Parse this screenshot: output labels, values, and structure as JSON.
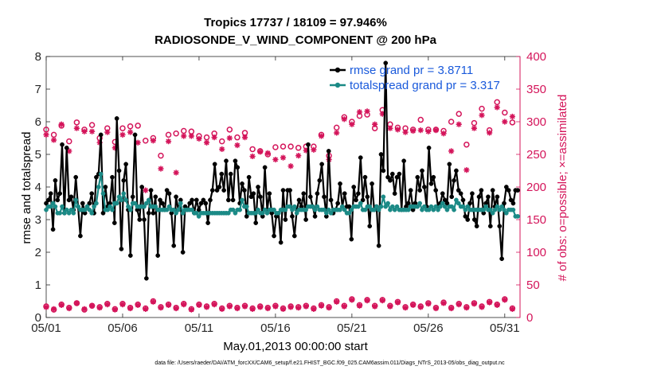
{
  "chart_data": {
    "type": "line",
    "title": "Tropics 17737 / 18109 = 97.946%",
    "subtitle": "RADIOSONDE_V_WIND_COMPONENT @ 200 hPa",
    "xlabel": "May.01,2013 00:00:00 start",
    "ylabel_left": "rmse and totalspread",
    "ylabel_right": "# of obs: o=possible; ×=assimilated",
    "footnote": "data file: /Users/raeder/DAI/ATM_forcXX/CAM6_setup/f.e21.FHIST_BGC.f09_025.CAM6assim.011/Diags_NTrS_2013-05/obs_diag_output.nc",
    "x_tick_labels": [
      "05/01",
      "05/06",
      "05/11",
      "05/16",
      "05/21",
      "05/26",
      "05/31"
    ],
    "x_tick_days": [
      1,
      6,
      11,
      16,
      21,
      26,
      31
    ],
    "xlim_days": [
      1,
      32
    ],
    "ylim_left": [
      0,
      8
    ],
    "y_ticks_left": [
      "0",
      "1",
      "2",
      "3",
      "4",
      "5",
      "6",
      "7",
      "8"
    ],
    "ylim_right": [
      0,
      400
    ],
    "y_ticks_right": [
      "0",
      "50",
      "100",
      "150",
      "200",
      "250",
      "300",
      "350",
      "400"
    ],
    "colors": {
      "rmse": "#000000",
      "spread": "#1b8a86",
      "obs": "#d4145a",
      "legend_text": "#1a5adb"
    },
    "series": [
      {
        "name": "rmse grand pr = 3.8711",
        "axis": "left",
        "values": [
          3.5,
          3.6,
          3.8,
          2.7,
          4.2,
          3.6,
          3.8,
          5.3,
          3.2,
          5.2,
          3.6,
          3.7,
          3.3,
          4.3,
          3.4,
          2.5,
          3.5,
          3.2,
          3.4,
          3.5,
          3.8,
          3.2,
          4.3,
          4.4,
          5.6,
          3.2,
          4.0,
          3.4,
          3.5,
          4.3,
          2.9,
          6.1,
          4.5,
          2.1,
          4.2,
          4.7,
          3.3,
          1.9,
          3.7,
          5.6,
          3.3,
          3.0,
          4.0,
          3.0,
          1.2,
          3.2,
          3.9,
          3.2,
          3.7,
          1.9,
          3.6,
          3.5,
          3.3,
          3.9,
          3.8,
          3.2,
          2.2,
          3.7,
          3.3,
          3.6,
          2.0,
          3.4,
          3.3,
          3.5,
          3.6,
          3.2,
          3.6,
          3.3,
          3.5,
          3.6,
          3.5,
          2.9,
          3.6,
          3.9,
          4.7,
          3.9,
          4.0,
          4.4,
          3.9,
          4.8,
          3.6,
          4.4,
          3.6,
          4.8,
          4.6,
          3.5,
          4.1,
          3.9,
          3.1,
          4.3,
          3.7,
          3.8,
          2.9,
          4.0,
          3.7,
          3.1,
          4.6,
          3.3,
          3.8,
          3.2,
          2.5,
          3.1,
          3.2,
          2.3,
          3.9,
          3.0,
          3.9,
          3.9,
          3.1,
          2.5,
          3.3,
          3.6,
          3.4,
          3.8,
          3.0,
          5.3,
          3.7,
          3.4,
          3.1,
          3.8,
          4.2,
          4.7,
          3.7,
          3.1,
          5.1,
          3.6,
          3.2,
          3.3,
          3.5,
          4.1,
          3.4,
          3.8,
          3.4,
          3.4,
          2.4,
          4.0,
          3.6,
          3.8,
          4.9,
          3.6,
          4.3,
          3.7,
          2.8,
          4.1,
          3.3,
          3.4,
          2.2,
          5.0,
          4.5,
          7.8,
          4.3,
          4.2,
          4.4,
          3.8,
          4.3,
          4.4,
          3.3,
          4.8,
          3.4,
          3.5,
          3.9,
          3.3,
          3.5,
          4.3,
          3.9,
          4.5,
          4.0,
          3.4,
          5.2,
          4.1,
          4.3,
          3.9,
          3.4,
          3.5,
          3.8,
          3.6,
          3.5,
          4.7,
          3.7,
          4.2,
          4.5,
          3.9,
          3.8,
          3.6,
          3.1,
          3.0,
          3.5,
          3.8,
          3.0,
          2.8,
          3.7,
          3.9,
          3.2,
          3.5,
          3.7,
          2.8,
          3.9,
          3.4,
          3.7,
          2.8,
          1.8,
          3.5,
          4.0,
          3.9,
          3.6,
          3.5,
          3.9,
          3.9
        ]
      },
      {
        "name": "totalspread grand pr = 3.317",
        "axis": "left",
        "values": [
          3.3,
          3.4,
          3.4,
          3.5,
          3.4,
          3.2,
          3.2,
          3.4,
          3.2,
          3.3,
          3.2,
          3.3,
          3.2,
          3.6,
          3.4,
          3.3,
          3.3,
          3.3,
          3.4,
          3.3,
          3.2,
          3.4,
          3.5,
          4.0,
          4.4,
          3.8,
          3.3,
          3.3,
          3.4,
          3.3,
          3.5,
          3.5,
          3.7,
          3.6,
          3.8,
          3.6,
          3.4,
          3.3,
          3.5,
          3.5,
          3.4,
          3.4,
          3.4,
          3.4,
          3.5,
          3.6,
          3.4,
          3.4,
          3.4,
          3.3,
          3.3,
          3.3,
          3.3,
          3.3,
          3.4,
          3.3,
          3.3,
          3.2,
          3.3,
          3.5,
          3.2,
          3.3,
          3.3,
          3.3,
          3.3,
          3.2,
          3.2,
          3.1,
          3.2,
          3.2,
          3.2,
          3.2,
          3.2,
          3.2,
          3.2,
          3.2,
          3.2,
          3.2,
          3.2,
          3.2,
          3.2,
          3.3,
          3.3,
          3.2,
          3.3,
          3.3,
          3.6,
          3.4,
          3.4,
          3.2,
          3.2,
          3.2,
          3.2,
          3.3,
          3.2,
          3.2,
          3.3,
          3.2,
          3.3,
          3.3,
          3.3,
          3.2,
          3.2,
          3.3,
          3.3,
          3.3,
          3.4,
          3.4,
          3.3,
          3.4,
          3.2,
          3.3,
          3.3,
          3.3,
          3.3,
          3.4,
          3.4,
          3.4,
          3.3,
          3.4,
          3.3,
          3.3,
          3.3,
          3.2,
          3.3,
          3.2,
          3.3,
          3.3,
          3.3,
          3.3,
          3.4,
          3.3,
          3.2,
          3.2,
          3.3,
          3.4,
          3.4,
          3.4,
          3.5,
          3.3,
          3.3,
          3.4,
          3.4,
          3.3,
          3.3,
          3.4,
          3.3,
          3.4,
          3.7,
          3.4,
          3.5,
          3.3,
          3.4,
          3.3,
          3.4,
          3.3,
          3.3,
          3.3,
          3.3,
          3.3,
          3.4,
          3.4,
          3.4,
          3.4,
          3.5,
          3.3,
          3.4,
          3.3,
          3.3,
          3.4,
          3.3,
          3.4,
          3.3,
          3.4,
          3.5,
          3.4,
          3.3,
          3.4,
          3.4,
          3.3,
          3.6,
          3.5,
          3.4,
          3.4,
          3.3,
          3.4,
          3.3,
          3.3,
          3.3,
          3.3,
          3.3,
          3.3,
          3.3,
          3.4,
          3.3,
          3.3,
          3.2,
          3.3,
          3.4,
          3.3,
          3.4,
          3.3,
          3.2,
          3.3,
          3.3,
          3.3,
          3.1,
          3.1
        ]
      }
    ],
    "obs_possible": {
      "name": "possible",
      "axis": "right",
      "days": [
        1.0,
        1.5,
        2.0,
        2.5,
        3.0,
        3.5,
        4.0,
        4.5,
        5.0,
        5.5,
        6.0,
        6.5,
        7.0,
        7.5,
        8.0,
        8.5,
        9.0,
        9.5,
        10.0,
        10.5,
        11.0,
        11.5,
        12.0,
        12.5,
        13.0,
        13.5,
        14.0,
        14.5,
        15.0,
        15.5,
        16.0,
        16.5,
        17.0,
        17.5,
        18.0,
        18.5,
        19.0,
        19.5,
        20.0,
        20.5,
        21.0,
        21.5,
        22.0,
        22.5,
        23.0,
        23.5,
        24.0,
        24.5,
        25.0,
        25.5,
        26.0,
        26.5,
        27.0,
        27.5,
        28.0,
        28.5,
        29.0,
        29.5,
        30.0,
        30.5,
        31.0,
        31.5
      ],
      "high": [
        288,
        280,
        294,
        270,
        299,
        288,
        295,
        275,
        290,
        269,
        290,
        293,
        294,
        271,
        275,
        248,
        280,
        282,
        286,
        285,
        278,
        276,
        282,
        270,
        288,
        276,
        283,
        258,
        255,
        250,
        261,
        262,
        262,
        260,
        262,
        262,
        280,
        248,
        291,
        307,
        300,
        309,
        311,
        290,
        318,
        296,
        291,
        290,
        288,
        303,
        288,
        288,
        286,
        300,
        312,
        265,
        298,
        320,
        287,
        330,
        314,
        299
      ],
      "low": [
        17,
        12,
        20,
        15,
        22,
        12,
        18,
        16,
        21,
        13,
        21,
        15,
        20,
        14,
        25,
        16,
        20,
        15,
        21,
        13,
        20,
        17,
        21,
        14,
        18,
        15,
        18,
        14,
        17,
        15,
        18,
        14,
        17,
        16,
        18,
        14,
        19,
        16,
        25,
        18,
        28,
        19,
        27,
        18,
        27,
        18,
        24,
        16,
        20,
        17,
        22,
        15,
        23,
        15,
        21,
        16,
        22,
        17,
        24,
        20,
        28,
        14
      ]
    },
    "obs_assimilated": {
      "name": "assimilated",
      "axis": "right",
      "days": [
        1.0,
        1.5,
        2.0,
        2.5,
        3.0,
        3.5,
        4.0,
        4.5,
        5.0,
        5.5,
        6.0,
        6.5,
        7.0,
        7.5,
        8.0,
        8.5,
        9.0,
        9.5,
        10.0,
        10.5,
        11.0,
        11.5,
        12.0,
        12.5,
        13.0,
        13.5,
        14.0,
        14.5,
        15.0,
        15.5,
        16.0,
        16.5,
        17.0,
        17.5,
        18.0,
        18.5,
        19.0,
        19.5,
        20.0,
        20.5,
        21.0,
        21.5,
        22.0,
        22.5,
        23.0,
        23.5,
        24.0,
        24.5,
        25.0,
        25.5,
        26.0,
        26.5,
        27.0,
        27.5,
        28.0,
        28.5,
        29.0,
        29.5,
        30.0,
        30.5,
        31.0,
        31.5
      ],
      "high": [
        280,
        272,
        296,
        255,
        290,
        285,
        285,
        268,
        284,
        260,
        280,
        284,
        268,
        195,
        271,
        228,
        270,
        222,
        278,
        278,
        274,
        268,
        276,
        258,
        275,
        264,
        276,
        247,
        254,
        252,
        242,
        245,
        232,
        248,
        256,
        257,
        278,
        242,
        283,
        304,
        296,
        315,
        316,
        296,
        312,
        290,
        288,
        284,
        286,
        287,
        285,
        287,
        282,
        255,
        296,
        226,
        290,
        310,
        283,
        322,
        300,
        308
      ],
      "low": [
        16,
        13,
        19,
        14,
        22,
        13,
        18,
        15,
        20,
        12,
        20,
        14,
        19,
        13,
        24,
        15,
        19,
        14,
        20,
        12,
        19,
        16,
        20,
        13,
        17,
        14,
        17,
        13,
        16,
        14,
        17,
        13,
        16,
        15,
        17,
        13,
        18,
        15,
        24,
        17,
        27,
        18,
        26,
        17,
        26,
        17,
        23,
        15,
        19,
        16,
        21,
        14,
        22,
        14,
        20,
        15,
        21,
        16,
        23,
        19,
        27,
        13
      ]
    }
  }
}
